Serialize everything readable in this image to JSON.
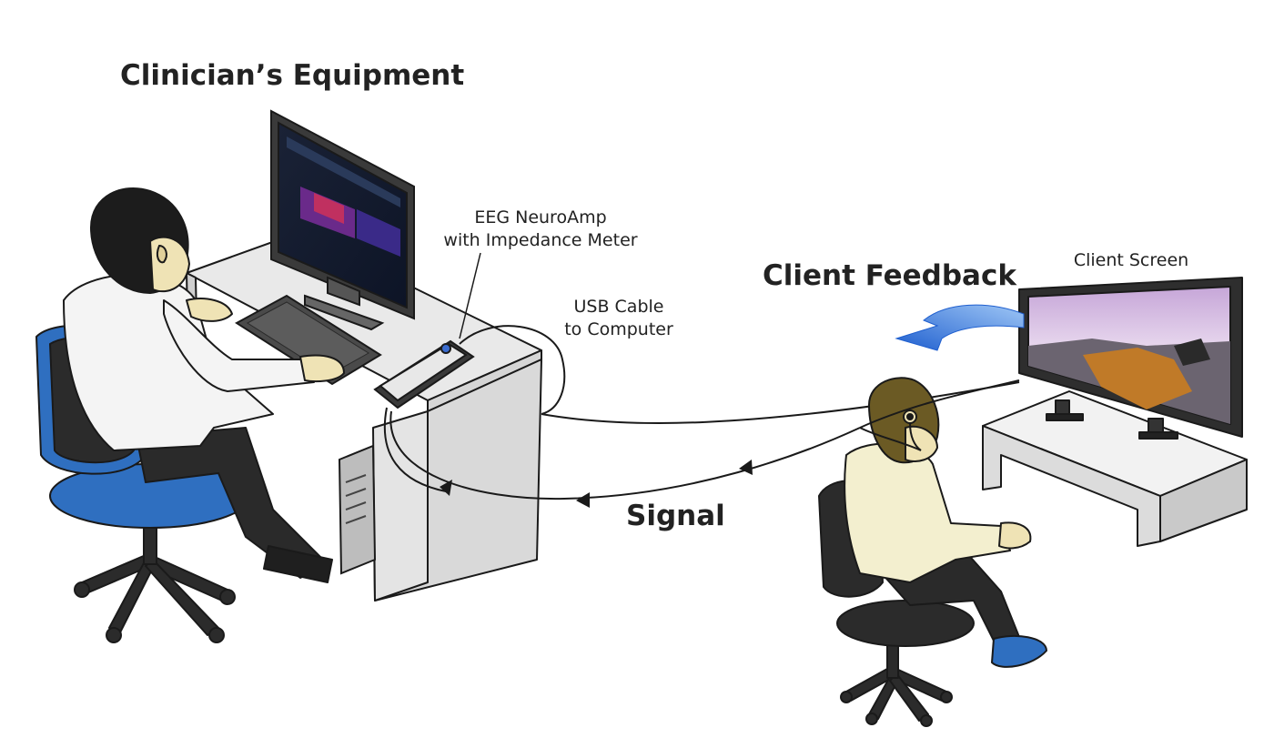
{
  "labels": {
    "clinician_title": "Clinician’s Equipment",
    "neuroamp_line1": "EEG NeuroAmp",
    "neuroamp_line2": "with Impedance Meter",
    "usb_line1": "USB Cable",
    "usb_line2": "to Computer",
    "client_feedback": "Client Feedback",
    "client_screen": "Client Screen",
    "signal": "Signal"
  },
  "colors": {
    "outline": "#1a1a1a",
    "desk_top": "#e6e6e6",
    "desk_side": "#cfcfcf",
    "chair_blue": "#2f6fc0",
    "chair_dark": "#2b2b2b",
    "shirt_white": "#f4f4f4",
    "shirt_cream": "#f3efcf",
    "skin": "#efe3b5",
    "hair_clinician": "#1c1c1c",
    "hair_client": "#6b5a24",
    "arrow_blue": "#2a6fd6",
    "pants": "#2a2a2a"
  }
}
